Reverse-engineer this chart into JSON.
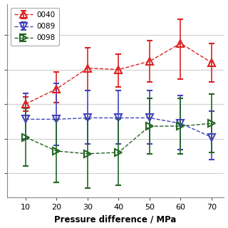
{
  "x": [
    10,
    20,
    30,
    40,
    50,
    60,
    70
  ],
  "series": [
    {
      "label": "0040",
      "color": "#dd2222",
      "marker": "^",
      "y": [
        0.5,
        0.72,
        1.02,
        1.0,
        1.12,
        1.38,
        1.1
      ],
      "yerr_lo": [
        0.1,
        0.2,
        0.32,
        0.25,
        0.3,
        0.52,
        0.28
      ],
      "yerr_hi": [
        0.1,
        0.25,
        0.3,
        0.22,
        0.3,
        0.35,
        0.28
      ]
    },
    {
      "label": "0089",
      "color": "#4444bb",
      "marker": "v",
      "y": [
        0.28,
        0.28,
        0.3,
        0.3,
        0.3,
        0.22,
        0.02
      ],
      "yerr_lo": [
        0.28,
        0.38,
        0.38,
        0.38,
        0.38,
        0.38,
        0.32
      ],
      "yerr_hi": [
        0.38,
        0.52,
        0.4,
        0.4,
        0.4,
        0.4,
        0.38
      ]
    },
    {
      "label": "0098",
      "color": "#226622",
      "marker": ">",
      "y": [
        0.02,
        -0.18,
        -0.22,
        -0.2,
        0.18,
        0.18,
        0.22
      ],
      "yerr_lo": [
        0.42,
        0.45,
        0.5,
        0.48,
        0.4,
        0.4,
        0.42
      ],
      "yerr_hi": [
        0.42,
        0.45,
        0.5,
        0.48,
        0.4,
        0.4,
        0.42
      ]
    }
  ],
  "xlabel": "Pressure difference / MPa",
  "ylim": [
    -0.85,
    1.95
  ],
  "xlim": [
    4,
    74
  ],
  "xticks": [
    10,
    20,
    30,
    40,
    50,
    60,
    70
  ],
  "yticks": [
    -0.5,
    0.0,
    0.5,
    1.0,
    1.5
  ],
  "background_color": "#ffffff",
  "grid_color": "#d0d0d0",
  "legend_loc": "upper left"
}
